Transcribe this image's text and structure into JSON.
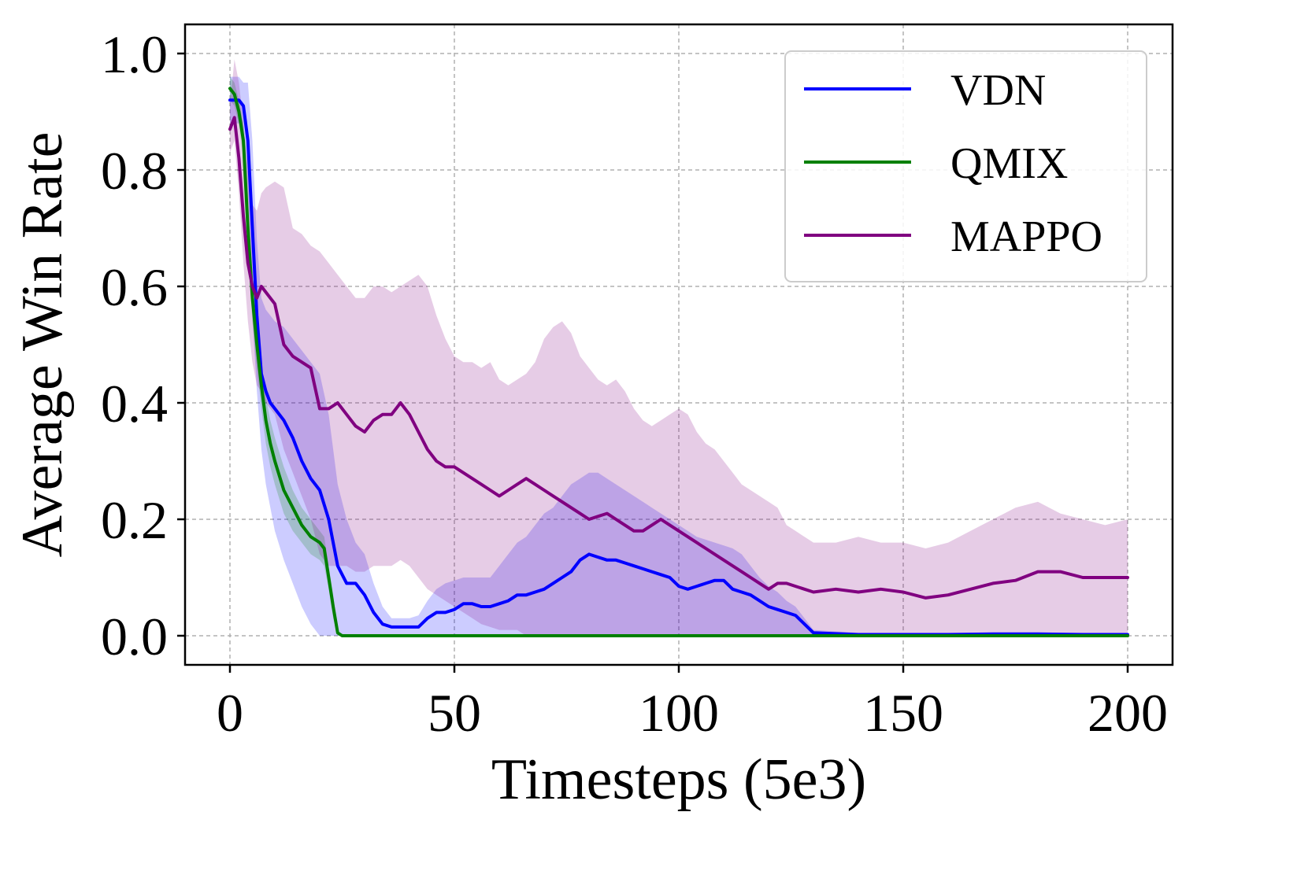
{
  "chart_data": {
    "type": "line",
    "title": "",
    "xlabel": "Timesteps (5e3)",
    "ylabel": "Average Win Rate",
    "xlim": [
      -10,
      210
    ],
    "ylim": [
      -0.05,
      1.05
    ],
    "xticks": [
      0,
      50,
      100,
      150,
      200
    ],
    "xtick_labels": [
      "0",
      "50",
      "100",
      "150",
      "200"
    ],
    "yticks": [
      0.0,
      0.2,
      0.4,
      0.6,
      0.8,
      1.0
    ],
    "ytick_labels": [
      "0.0",
      "0.2",
      "0.4",
      "0.6",
      "0.8",
      "1.0"
    ],
    "grid": true,
    "legend_position": "top-right",
    "series": [
      {
        "name": "VDN",
        "color": "#0000ff",
        "x": [
          0,
          2,
          3,
          4,
          5,
          6,
          7,
          8,
          9,
          10,
          12,
          14,
          16,
          18,
          20,
          22,
          24,
          26,
          28,
          30,
          32,
          34,
          36,
          38,
          40,
          42,
          44,
          46,
          48,
          50,
          52,
          54,
          56,
          58,
          60,
          62,
          64,
          66,
          68,
          70,
          72,
          74,
          76,
          78,
          80,
          82,
          84,
          86,
          88,
          90,
          92,
          94,
          96,
          98,
          100,
          102,
          104,
          106,
          108,
          110,
          112,
          114,
          116,
          118,
          120,
          122,
          124,
          126,
          128,
          130,
          140,
          150,
          160,
          170,
          180,
          190,
          200
        ],
        "values": [
          0.92,
          0.92,
          0.91,
          0.85,
          0.7,
          0.55,
          0.45,
          0.42,
          0.4,
          0.39,
          0.37,
          0.34,
          0.3,
          0.27,
          0.25,
          0.2,
          0.12,
          0.09,
          0.09,
          0.07,
          0.04,
          0.02,
          0.015,
          0.015,
          0.015,
          0.015,
          0.03,
          0.04,
          0.04,
          0.045,
          0.055,
          0.055,
          0.05,
          0.05,
          0.055,
          0.06,
          0.07,
          0.07,
          0.075,
          0.08,
          0.09,
          0.1,
          0.11,
          0.13,
          0.14,
          0.135,
          0.13,
          0.13,
          0.125,
          0.12,
          0.115,
          0.11,
          0.105,
          0.1,
          0.085,
          0.08,
          0.085,
          0.09,
          0.095,
          0.095,
          0.08,
          0.075,
          0.07,
          0.06,
          0.05,
          0.045,
          0.04,
          0.035,
          0.02,
          0.005,
          0.002,
          0.002,
          0.002,
          0.003,
          0.003,
          0.002,
          0.002
        ],
        "band_low": [
          0.88,
          0.88,
          0.86,
          0.75,
          0.55,
          0.42,
          0.32,
          0.26,
          0.22,
          0.18,
          0.13,
          0.09,
          0.05,
          0.02,
          0.0,
          0.0,
          0.0,
          0.0,
          0.0,
          0.0,
          0.0,
          0.0,
          0.0,
          0.0,
          0.0,
          0.0,
          0.0,
          0.0,
          0.0,
          0.0,
          0.0,
          0.0,
          0.0,
          0.0,
          0.0,
          0.0,
          0.0,
          0.0,
          0.0,
          0.0,
          0.0,
          0.0,
          0.0,
          0.0,
          0.0,
          0.0,
          0.0,
          0.0,
          0.0,
          0.0,
          0.0,
          0.0,
          0.0,
          0.0,
          0.0,
          0.0,
          0.0,
          0.0,
          0.0,
          0.0,
          0.0,
          0.0,
          0.0,
          0.0,
          0.0,
          0.0,
          0.0,
          0.0,
          0.0,
          0.0,
          0.0,
          0.0,
          0.0,
          0.0,
          0.0,
          0.0,
          0.0
        ],
        "band_high": [
          0.96,
          0.96,
          0.95,
          0.95,
          0.85,
          0.68,
          0.58,
          0.56,
          0.55,
          0.54,
          0.53,
          0.51,
          0.49,
          0.47,
          0.45,
          0.38,
          0.26,
          0.2,
          0.16,
          0.14,
          0.09,
          0.05,
          0.03,
          0.03,
          0.03,
          0.035,
          0.06,
          0.08,
          0.09,
          0.095,
          0.1,
          0.1,
          0.1,
          0.1,
          0.12,
          0.14,
          0.16,
          0.17,
          0.19,
          0.21,
          0.22,
          0.24,
          0.26,
          0.27,
          0.28,
          0.28,
          0.27,
          0.26,
          0.25,
          0.24,
          0.23,
          0.22,
          0.21,
          0.2,
          0.19,
          0.18,
          0.17,
          0.165,
          0.16,
          0.155,
          0.15,
          0.14,
          0.12,
          0.1,
          0.085,
          0.075,
          0.06,
          0.05,
          0.03,
          0.01,
          0.005,
          0.005,
          0.005,
          0.005,
          0.005,
          0.005,
          0.005
        ]
      },
      {
        "name": "QMIX",
        "color": "#008000",
        "x": [
          0,
          1,
          2,
          3,
          4,
          5,
          6,
          7,
          8,
          9,
          10,
          12,
          14,
          16,
          18,
          20,
          21,
          22,
          23,
          24,
          25,
          26,
          27,
          30,
          40,
          50,
          100,
          150,
          200
        ],
        "values": [
          0.94,
          0.93,
          0.9,
          0.85,
          0.7,
          0.58,
          0.5,
          0.43,
          0.37,
          0.33,
          0.3,
          0.25,
          0.22,
          0.19,
          0.17,
          0.16,
          0.15,
          0.1,
          0.05,
          0.005,
          0.0,
          0.0,
          0.0,
          0.0,
          0.0,
          0.0,
          0.0,
          0.0,
          0.0
        ],
        "band_low": [
          0.92,
          0.91,
          0.88,
          0.82,
          0.66,
          0.54,
          0.46,
          0.39,
          0.33,
          0.29,
          0.26,
          0.21,
          0.18,
          0.16,
          0.14,
          0.13,
          0.12,
          0.08,
          0.03,
          0.0,
          0.0,
          0.0,
          0.0,
          0.0,
          0.0,
          0.0,
          0.0,
          0.0,
          0.0
        ],
        "band_high": [
          0.96,
          0.95,
          0.92,
          0.88,
          0.74,
          0.62,
          0.54,
          0.47,
          0.41,
          0.37,
          0.34,
          0.29,
          0.25,
          0.22,
          0.2,
          0.18,
          0.17,
          0.12,
          0.07,
          0.01,
          0.0,
          0.0,
          0.0,
          0.0,
          0.0,
          0.0,
          0.0,
          0.0,
          0.0
        ]
      },
      {
        "name": "MAPPO",
        "color": "#800080",
        "x": [
          0,
          1,
          2,
          3,
          4,
          5,
          6,
          7,
          8,
          10,
          12,
          14,
          16,
          18,
          20,
          22,
          24,
          26,
          28,
          30,
          32,
          34,
          36,
          38,
          40,
          42,
          44,
          46,
          48,
          50,
          52,
          54,
          56,
          58,
          60,
          62,
          64,
          66,
          68,
          70,
          72,
          74,
          76,
          78,
          80,
          82,
          84,
          86,
          88,
          90,
          92,
          94,
          96,
          98,
          100,
          102,
          104,
          106,
          108,
          110,
          112,
          114,
          116,
          118,
          120,
          122,
          124,
          126,
          128,
          130,
          135,
          140,
          145,
          150,
          155,
          160,
          165,
          170,
          175,
          180,
          185,
          190,
          195,
          200
        ],
        "values": [
          0.87,
          0.89,
          0.82,
          0.72,
          0.64,
          0.6,
          0.58,
          0.6,
          0.59,
          0.57,
          0.5,
          0.48,
          0.47,
          0.46,
          0.39,
          0.39,
          0.4,
          0.38,
          0.36,
          0.35,
          0.37,
          0.38,
          0.38,
          0.4,
          0.38,
          0.35,
          0.32,
          0.3,
          0.29,
          0.29,
          0.28,
          0.27,
          0.26,
          0.25,
          0.24,
          0.25,
          0.26,
          0.27,
          0.26,
          0.25,
          0.24,
          0.23,
          0.22,
          0.21,
          0.2,
          0.205,
          0.21,
          0.2,
          0.19,
          0.18,
          0.18,
          0.19,
          0.2,
          0.19,
          0.18,
          0.17,
          0.16,
          0.15,
          0.14,
          0.13,
          0.12,
          0.11,
          0.1,
          0.09,
          0.08,
          0.09,
          0.09,
          0.085,
          0.08,
          0.075,
          0.08,
          0.075,
          0.08,
          0.075,
          0.065,
          0.07,
          0.08,
          0.09,
          0.095,
          0.11,
          0.11,
          0.1,
          0.1,
          0.1
        ],
        "band_low": [
          0.83,
          0.85,
          0.76,
          0.64,
          0.54,
          0.47,
          0.43,
          0.42,
          0.4,
          0.38,
          0.32,
          0.28,
          0.24,
          0.2,
          0.14,
          0.12,
          0.12,
          0.12,
          0.11,
          0.11,
          0.12,
          0.12,
          0.12,
          0.13,
          0.12,
          0.1,
          0.08,
          0.07,
          0.06,
          0.05,
          0.04,
          0.03,
          0.02,
          0.015,
          0.01,
          0.01,
          0.01,
          0.0,
          0.0,
          0.0,
          0.0,
          0.0,
          0.0,
          0.0,
          0.0,
          0.0,
          0.0,
          0.0,
          0.0,
          0.0,
          0.0,
          0.0,
          0.0,
          0.0,
          0.0,
          0.0,
          0.0,
          0.0,
          0.0,
          0.0,
          0.0,
          0.0,
          0.0,
          0.0,
          0.0,
          0.0,
          0.0,
          0.0,
          0.0,
          0.0,
          0.0,
          0.0,
          0.0,
          0.0,
          0.0,
          0.0,
          0.0,
          0.0,
          0.0,
          0.0,
          0.0,
          0.0,
          0.0,
          0.0
        ],
        "band_high": [
          0.91,
          0.99,
          0.95,
          0.88,
          0.8,
          0.74,
          0.73,
          0.76,
          0.77,
          0.78,
          0.77,
          0.7,
          0.69,
          0.67,
          0.66,
          0.64,
          0.62,
          0.6,
          0.58,
          0.58,
          0.6,
          0.6,
          0.59,
          0.6,
          0.61,
          0.62,
          0.6,
          0.55,
          0.51,
          0.48,
          0.47,
          0.47,
          0.46,
          0.47,
          0.44,
          0.43,
          0.44,
          0.45,
          0.47,
          0.51,
          0.53,
          0.54,
          0.52,
          0.48,
          0.46,
          0.44,
          0.43,
          0.44,
          0.42,
          0.39,
          0.37,
          0.36,
          0.37,
          0.38,
          0.39,
          0.38,
          0.35,
          0.33,
          0.32,
          0.3,
          0.28,
          0.26,
          0.25,
          0.24,
          0.23,
          0.22,
          0.19,
          0.18,
          0.17,
          0.16,
          0.16,
          0.17,
          0.16,
          0.16,
          0.15,
          0.16,
          0.18,
          0.2,
          0.22,
          0.23,
          0.21,
          0.2,
          0.19,
          0.2
        ]
      }
    ]
  }
}
